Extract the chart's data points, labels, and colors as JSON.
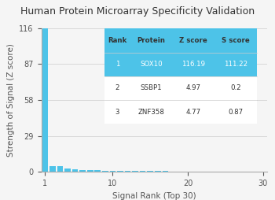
{
  "title": "Human Protein Microarray Specificity Validation",
  "xlabel": "Signal Rank (Top 30)",
  "ylabel": "Strength of Signal (Z score)",
  "bar_color": "#4dc3e8",
  "background_color": "#f5f5f5",
  "yticks": [
    0,
    29,
    58,
    87,
    116
  ],
  "xticks": [
    1,
    10,
    20,
    30
  ],
  "xlim": [
    0.5,
    30.5
  ],
  "ylim": [
    0,
    116
  ],
  "n_bars": 30,
  "first_bar_height": 116.19,
  "other_bar_heights": [
    4.97,
    4.77,
    2.5,
    2.1,
    1.8,
    1.5,
    1.3,
    1.1,
    1.0,
    0.9,
    0.85,
    0.8,
    0.75,
    0.7,
    0.65,
    0.6,
    0.55,
    0.5,
    0.45,
    0.4,
    0.35,
    0.3,
    0.28,
    0.25,
    0.22,
    0.2,
    0.18,
    0.15,
    0.12
  ],
  "table_headers": [
    "Rank",
    "Protein",
    "Z score",
    "S score"
  ],
  "table_rows": [
    [
      "1",
      "SOX10",
      "116.19",
      "111.22"
    ],
    [
      "2",
      "SSBP1",
      "4.97",
      "0.2"
    ],
    [
      "3",
      "ZNF358",
      "4.77",
      "0.87"
    ]
  ],
  "header_bg": "#4dc3e8",
  "row1_bg": "#4dc3e8",
  "row1_text_color": "#ffffff",
  "header_text_color": "#333333",
  "row_text_color": "#333333",
  "title_fontsize": 9.0,
  "axis_label_fontsize": 7.5,
  "tick_fontsize": 7.0,
  "table_fontsize": 6.2,
  "grid_color": "#cccccc",
  "spine_color": "#aaaaaa",
  "text_color": "#555555"
}
